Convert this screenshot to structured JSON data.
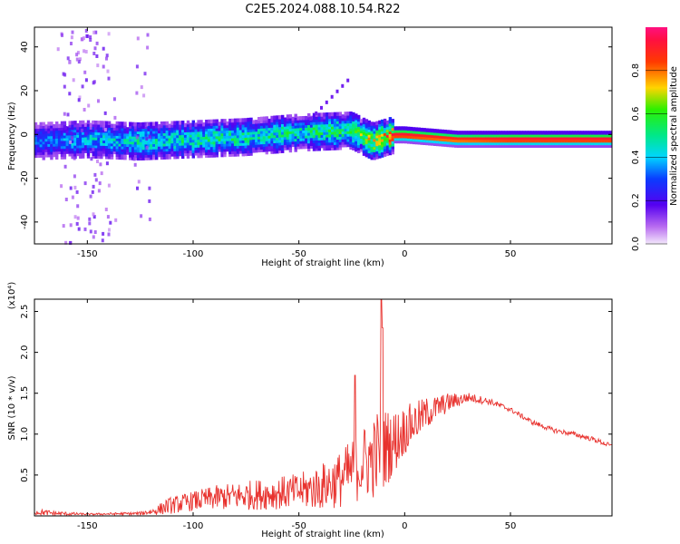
{
  "figure": {
    "title": "C2E5.2024.088.10.54.R22"
  },
  "chart_data": [
    {
      "type": "heatmap",
      "name": "spectrogram",
      "xlabel": "Height of straight line (km)",
      "ylabel": "Frequency (Hz)",
      "xlim": [
        -175,
        98
      ],
      "ylim": [
        -50,
        49
      ],
      "xticks": [
        -150,
        -100,
        -50,
        0,
        50
      ],
      "yticks": [
        -40,
        -20,
        0,
        20,
        40
      ],
      "colorbar": {
        "label": "Normalized spectral amplitude",
        "range": [
          0,
          1
        ],
        "ticks": [
          0.0,
          0.2,
          0.4,
          0.6,
          0.8
        ],
        "tick_labels": [
          "0.0",
          "0.2",
          "0.4",
          "0.6",
          "0.8"
        ]
      },
      "ridge": {
        "description": "dominant frequency band vs height",
        "x": [
          -175,
          -150,
          -125,
          -100,
          -75,
          -50,
          -25,
          -15,
          -5,
          0,
          25,
          50,
          75,
          98
        ],
        "freq_hz": [
          -3,
          -2,
          -3,
          -2,
          -1,
          1,
          2,
          -3,
          0,
          0,
          -2,
          -2,
          -2,
          -2
        ],
        "peak_amplitude": [
          0.35,
          0.45,
          0.5,
          0.55,
          0.55,
          0.55,
          0.6,
          0.75,
          0.95,
          0.95,
          0.9,
          0.95,
          0.95,
          0.95
        ]
      }
    },
    {
      "type": "line",
      "name": "snr",
      "xlabel": "Height of straight line (km)",
      "ylabel": "SNR (10 * v/v)",
      "y_multiplier": "(x10⁴)",
      "xlim": [
        -175,
        98
      ],
      "ylim": [
        0,
        2.65
      ],
      "xticks": [
        -150,
        -100,
        -50,
        0,
        50
      ],
      "yticks": [
        0.5,
        1.0,
        1.5,
        2.0,
        2.5
      ],
      "ytick_labels": [
        "0.5",
        "1.0",
        "1.5",
        "2.0",
        "2.5"
      ],
      "color": "#e8322e",
      "series": [
        {
          "name": "SNR",
          "x": [
            -175,
            -165,
            -150,
            -125,
            -118,
            -112,
            -100,
            -90,
            -75,
            -60,
            -50,
            -40,
            -30,
            -25,
            -24,
            -20,
            -15,
            -12,
            -11,
            -10,
            -5,
            0,
            5,
            10,
            20,
            30,
            40,
            50,
            60,
            70,
            80,
            90,
            98
          ],
          "base": [
            0.05,
            0.03,
            0.02,
            0.03,
            0.06,
            0.12,
            0.18,
            0.22,
            0.25,
            0.28,
            0.3,
            0.35,
            0.45,
            0.55,
            0.55,
            0.65,
            0.7,
            0.8,
            0.8,
            0.82,
            0.9,
            1.05,
            1.15,
            1.25,
            1.38,
            1.45,
            1.4,
            1.3,
            1.15,
            1.05,
            1.0,
            0.93,
            0.85
          ],
          "noise": [
            0.04,
            0.03,
            0.01,
            0.02,
            0.05,
            0.1,
            0.12,
            0.15,
            0.18,
            0.2,
            0.22,
            0.28,
            0.35,
            0.4,
            0.4,
            0.45,
            0.5,
            0.55,
            0.55,
            0.5,
            0.4,
            0.3,
            0.25,
            0.2,
            0.12,
            0.06,
            0.04,
            0.03,
            0.03,
            0.03,
            0.03,
            0.03,
            0.03
          ]
        }
      ],
      "spikes": [
        {
          "x": -23.5,
          "y": 1.72
        },
        {
          "x": -11,
          "y": 2.65
        },
        {
          "x": -10.5,
          "y": 2.3
        }
      ]
    }
  ]
}
